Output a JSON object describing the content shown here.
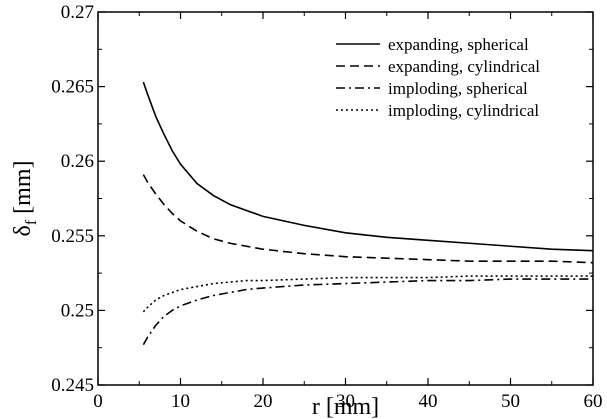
{
  "chart_data": {
    "type": "line",
    "title": "",
    "xlabel": "r [mm]",
    "ylabel_main": "δ",
    "ylabel_sub": "f",
    "ylabel_unit": " [mm]",
    "xlim": [
      0,
      60
    ],
    "ylim": [
      0.245,
      0.27
    ],
    "xticks": [
      0,
      10,
      20,
      30,
      40,
      50,
      60
    ],
    "xtick_labels": [
      "0",
      "10",
      "20",
      "30",
      "40",
      "50",
      "60"
    ],
    "yticks": [
      0.245,
      0.25,
      0.255,
      0.26,
      0.265,
      0.27
    ],
    "ytick_labels": [
      "0.245",
      "0.25",
      "0.255",
      "0.26",
      "0.265",
      "0.27"
    ],
    "grid": false,
    "legend_position": "top-right",
    "series": [
      {
        "name": "expanding, spherical",
        "dash": "solid",
        "color": "#000000",
        "x": [
          5.5,
          6,
          7,
          8,
          9,
          10,
          12,
          14,
          16,
          18,
          20,
          25,
          30,
          35,
          40,
          45,
          50,
          55,
          60
        ],
        "y": [
          0.2653,
          0.2645,
          0.263,
          0.2618,
          0.2607,
          0.2598,
          0.2585,
          0.2577,
          0.2571,
          0.2567,
          0.2563,
          0.2557,
          0.2552,
          0.2549,
          0.2547,
          0.2545,
          0.2543,
          0.2541,
          0.254
        ]
      },
      {
        "name": "expanding, cylindrical",
        "dash": "dashed",
        "color": "#000000",
        "x": [
          5.5,
          6,
          7,
          8,
          9,
          10,
          12,
          14,
          16,
          18,
          20,
          25,
          30,
          35,
          40,
          45,
          50,
          55,
          60
        ],
        "y": [
          0.2591,
          0.2586,
          0.2578,
          0.2571,
          0.2565,
          0.256,
          0.2553,
          0.2548,
          0.2545,
          0.2543,
          0.2541,
          0.2538,
          0.2536,
          0.2535,
          0.2534,
          0.2533,
          0.2533,
          0.2533,
          0.2532
        ]
      },
      {
        "name": "imploding, spherical",
        "dash": "dashdot",
        "color": "#000000",
        "x": [
          5.5,
          6,
          7,
          8,
          9,
          10,
          12,
          14,
          16,
          18,
          20,
          25,
          30,
          35,
          40,
          45,
          50,
          55,
          60
        ],
        "y": [
          0.2477,
          0.2482,
          0.249,
          0.2496,
          0.25,
          0.2503,
          0.2507,
          0.251,
          0.2512,
          0.2514,
          0.2515,
          0.2517,
          0.2518,
          0.2519,
          0.252,
          0.252,
          0.2521,
          0.2521,
          0.2521
        ]
      },
      {
        "name": "imploding, cylindrical",
        "dash": "dotted",
        "color": "#000000",
        "x": [
          5.5,
          6,
          7,
          8,
          9,
          10,
          12,
          14,
          16,
          18,
          20,
          25,
          30,
          35,
          40,
          45,
          50,
          55,
          60
        ],
        "y": [
          0.2499,
          0.2502,
          0.2507,
          0.251,
          0.2512,
          0.2514,
          0.2516,
          0.2518,
          0.2519,
          0.252,
          0.252,
          0.2521,
          0.2522,
          0.2522,
          0.2522,
          0.2523,
          0.2523,
          0.2523,
          0.2523
        ]
      }
    ]
  }
}
